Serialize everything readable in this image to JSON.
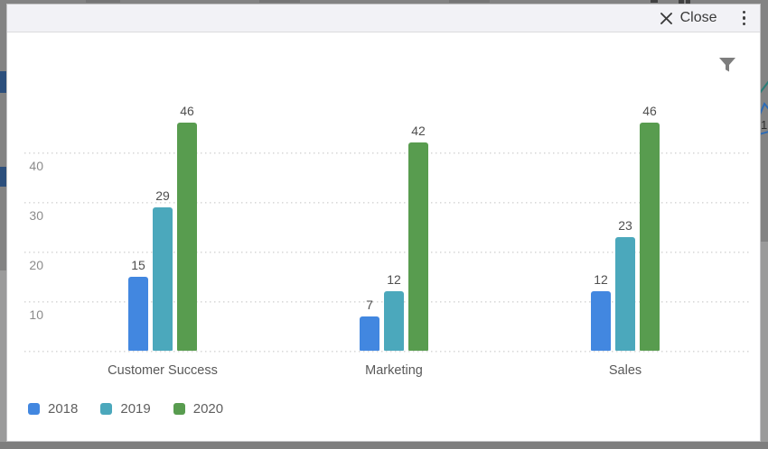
{
  "modal": {
    "close_label": "Close"
  },
  "chart_data": {
    "type": "bar",
    "categories": [
      "Customer Success",
      "Marketing",
      "Sales"
    ],
    "series": [
      {
        "name": "2018",
        "color": "#4287e0",
        "values": [
          15,
          7,
          12
        ]
      },
      {
        "name": "2019",
        "color": "#4ba8bc",
        "values": [
          29,
          12,
          23
        ]
      },
      {
        "name": "2020",
        "color": "#589c4f",
        "values": [
          46,
          42,
          46
        ]
      }
    ],
    "yticks": [
      10,
      20,
      30,
      40
    ],
    "ylim": [
      0,
      50
    ],
    "grid": "dotted-horizontal",
    "legend_position": "bottom-left",
    "value_labels": true,
    "title": "",
    "xlabel": "",
    "ylabel": ""
  },
  "background": {
    "edge_fragment_text": "1"
  },
  "colors": {
    "accent_blue": "#4287e0",
    "accent_teal": "#4ba8bc",
    "accent_green": "#589c4f",
    "backdrop_gray": "#838383",
    "navy_fragment": "#2c4f7c"
  }
}
